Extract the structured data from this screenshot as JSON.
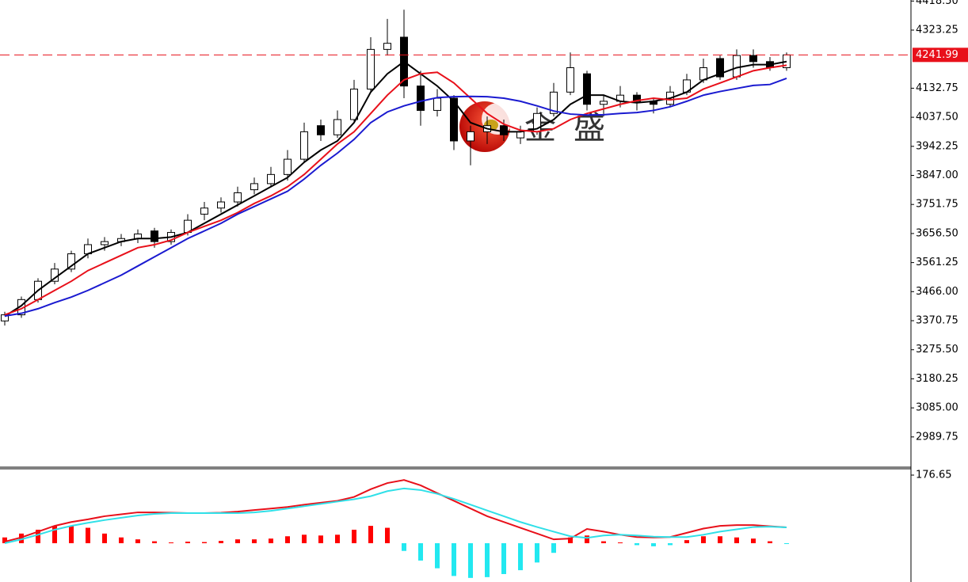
{
  "chart_data": {
    "type": "candlestick",
    "ylim": [
      2890.6,
      4421.9
    ],
    "yticks": [
      {
        "value": 4418.5,
        "label": "4418.50"
      },
      4323.25,
      4132.75,
      {
        "value": 4037.5,
        "label": "4037.50"
      },
      3942.25,
      {
        "value": 3847,
        "label": "3847.00"
      },
      3751.75,
      {
        "value": 3656.5,
        "label": "3656.50"
      },
      3561.25,
      {
        "value": 3466,
        "label": "3466.00"
      },
      3370.75,
      {
        "value": 3275.5,
        "label": "3275.50"
      },
      3180.25,
      {
        "value": 3085,
        "label": "3085.00"
      },
      2989.75
    ],
    "current_price": {
      "value": 4241.99,
      "color": "#e8101a"
    },
    "watermark": [
      "金",
      "盛"
    ],
    "ohlc": [
      [
        3370,
        3400,
        3355,
        3390
      ],
      [
        3390,
        3450,
        3380,
        3440
      ],
      [
        3440,
        3510,
        3430,
        3500
      ],
      [
        3500,
        3560,
        3490,
        3540
      ],
      [
        3540,
        3600,
        3530,
        3590
      ],
      [
        3590,
        3640,
        3575,
        3620
      ],
      [
        3620,
        3645,
        3600,
        3630
      ],
      [
        3630,
        3655,
        3615,
        3640
      ],
      [
        3640,
        3670,
        3625,
        3655
      ],
      [
        3665,
        3675,
        3610,
        3630
      ],
      [
        3630,
        3670,
        3620,
        3660
      ],
      [
        3660,
        3720,
        3650,
        3700
      ],
      [
        3720,
        3760,
        3700,
        3740
      ],
      [
        3740,
        3775,
        3725,
        3760
      ],
      [
        3760,
        3810,
        3745,
        3790
      ],
      [
        3800,
        3840,
        3785,
        3820
      ],
      [
        3820,
        3875,
        3810,
        3850
      ],
      [
        3850,
        3930,
        3830,
        3900
      ],
      [
        3900,
        4020,
        3890,
        3990
      ],
      [
        4010,
        4030,
        3960,
        3980
      ],
      [
        3980,
        4060,
        3970,
        4030
      ],
      [
        4030,
        4160,
        4020,
        4130
      ],
      [
        4130,
        4300,
        4120,
        4260
      ],
      [
        4260,
        4360,
        4240,
        4280
      ],
      [
        4300,
        4390,
        4100,
        4140
      ],
      [
        4140,
        4190,
        4010,
        4060
      ],
      [
        4060,
        4130,
        4040,
        4100
      ],
      [
        4100,
        4110,
        3930,
        3960
      ],
      [
        3960,
        4010,
        3880,
        3990
      ],
      [
        3990,
        4040,
        3950,
        4010
      ],
      [
        4010,
        4030,
        3960,
        3980
      ],
      [
        3970,
        4010,
        3950,
        3990
      ],
      [
        3990,
        4070,
        3980,
        4050
      ],
      [
        4050,
        4150,
        4040,
        4120
      ],
      [
        4120,
        4250,
        4110,
        4200
      ],
      [
        4180,
        4190,
        4060,
        4080
      ],
      [
        4080,
        4110,
        4040,
        4090
      ],
      [
        4090,
        4140,
        4070,
        4110
      ],
      [
        4110,
        4120,
        4060,
        4090
      ],
      [
        4090,
        4100,
        4050,
        4080
      ],
      [
        4080,
        4140,
        4070,
        4120
      ],
      [
        4120,
        4180,
        4110,
        4160
      ],
      [
        4160,
        4230,
        4150,
        4200
      ],
      [
        4230,
        4240,
        4160,
        4170
      ],
      [
        4170,
        4260,
        4160,
        4240
      ],
      [
        4240,
        4260,
        4200,
        4220
      ],
      [
        4220,
        4235,
        4190,
        4200
      ],
      [
        4200,
        4250,
        4190,
        4241.99
      ]
    ],
    "moving_averages": [
      {
        "color": "#000000",
        "values": [
          3385,
          3420,
          3470,
          3510,
          3550,
          3590,
          3610,
          3630,
          3640,
          3640,
          3645,
          3660,
          3690,
          3720,
          3750,
          3780,
          3810,
          3840,
          3890,
          3930,
          3960,
          4020,
          4120,
          4180,
          4220,
          4180,
          4140,
          4090,
          4020,
          4000,
          3990,
          3990,
          4000,
          4030,
          4080,
          4110,
          4110,
          4090,
          4085,
          4090,
          4100,
          4120,
          4160,
          4180,
          4200,
          4210,
          4210,
          4220
        ]
      },
      {
        "color": "#e8101a",
        "values": [
          3390,
          3410,
          3440,
          3470,
          3500,
          3535,
          3560,
          3585,
          3610,
          3620,
          3635,
          3660,
          3680,
          3700,
          3725,
          3755,
          3780,
          3810,
          3850,
          3900,
          3950,
          3990,
          4050,
          4110,
          4160,
          4180,
          4185,
          4150,
          4100,
          4050,
          4015,
          3995,
          3990,
          4000,
          4030,
          4050,
          4065,
          4080,
          4092,
          4100,
          4095,
          4100,
          4130,
          4150,
          4170,
          4190,
          4200,
          4208
        ]
      },
      {
        "color": "#1a1ad0",
        "values": [
          3386,
          3395,
          3410,
          3430,
          3448,
          3470,
          3495,
          3520,
          3550,
          3580,
          3610,
          3640,
          3665,
          3690,
          3720,
          3745,
          3770,
          3795,
          3835,
          3880,
          3920,
          3965,
          4020,
          4055,
          4075,
          4090,
          4102,
          4105,
          4106,
          4105,
          4100,
          4090,
          4075,
          4058,
          4048,
          4045,
          4046,
          4050,
          4053,
          4060,
          4072,
          4090,
          4110,
          4122,
          4132,
          4142,
          4145,
          4165
        ]
      }
    ],
    "macd": {
      "ylim": [
        -100.6,
        193.1
      ],
      "yticks": [
        176.65
      ],
      "histogram": {
        "up_color": "#ff0000",
        "down_color": "#22e8f0",
        "values": [
          15,
          25,
          35,
          45,
          45,
          40,
          25,
          15,
          10,
          5,
          2,
          4,
          3,
          6,
          10,
          10,
          12,
          18,
          22,
          20,
          22,
          35,
          45,
          40,
          -20,
          -45,
          -65,
          -85,
          -90,
          -88,
          -80,
          -70,
          -50,
          -25,
          15,
          20,
          5,
          2,
          -5,
          -8,
          -5,
          8,
          18,
          18,
          15,
          12,
          5,
          -2
        ]
      },
      "series": [
        {
          "color": "#e8101a",
          "values": [
            4,
            15,
            30,
            45,
            55,
            62,
            70,
            75,
            80,
            80,
            79,
            78,
            78,
            79,
            82,
            86,
            90,
            94,
            100,
            105,
            110,
            120,
            140,
            156,
            164,
            150,
            130,
            110,
            90,
            70,
            55,
            40,
            25,
            10,
            12,
            37,
            30,
            22,
            16,
            15,
            16,
            27,
            38,
            45,
            47,
            47,
            44,
            41
          ]
        },
        {
          "color": "#30e0e8",
          "values": [
            0,
            10,
            22,
            35,
            45,
            53,
            60,
            66,
            72,
            76,
            78,
            78,
            78,
            78,
            78,
            80,
            84,
            90,
            96,
            102,
            108,
            114,
            122,
            135,
            142,
            138,
            128,
            115,
            100,
            85,
            70,
            55,
            42,
            30,
            18,
            14,
            20,
            22,
            20,
            17,
            16,
            16,
            22,
            30,
            36,
            42,
            43,
            41
          ]
        }
      ]
    }
  }
}
